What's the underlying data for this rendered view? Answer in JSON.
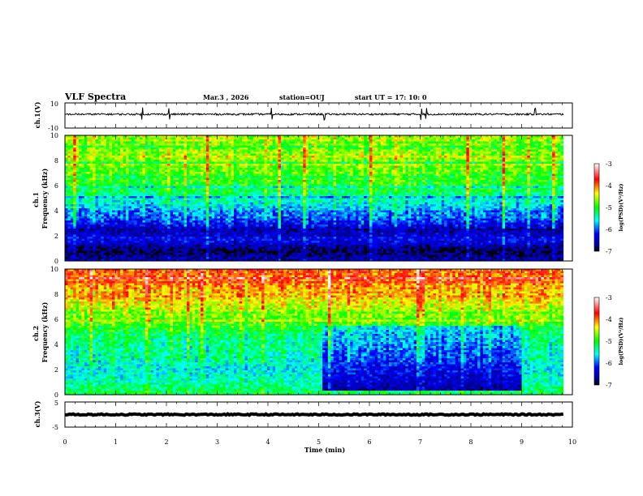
{
  "header": {
    "title": "VLF Spectra",
    "date": "Mar.3  , 2026",
    "station": "station=OUJ",
    "start_ut": "start  UT =   17: 10: 0"
  },
  "chart_data": [
    {
      "type": "line",
      "name": "ch1-waveform",
      "ylabel": "ch.1(V)",
      "ylim": [
        -10,
        10
      ],
      "y_ticks": [
        "10",
        "-10"
      ],
      "xlim": [
        0,
        10
      ],
      "data_extent_min": 9.82,
      "baseline": 1.0,
      "noise_amplitude": 0.7,
      "spikes_at_min": [
        1.52,
        2.05,
        4.07,
        5.12,
        7.02,
        7.12,
        9.27
      ]
    },
    {
      "type": "heatmap",
      "name": "ch1-spectrogram",
      "xlabel": "",
      "ylabel": "ch.1\nFrequency (kHz)",
      "ylim": [
        0,
        10
      ],
      "y_ticks": [
        "0",
        "2",
        "4",
        "6",
        "8",
        "10"
      ],
      "xlim": [
        0,
        10
      ],
      "data_extent_min": 9.82,
      "colorbar": {
        "label": "log(PSD)(V²/Hz)",
        "range": [
          -7,
          -3
        ],
        "ticks": [
          "-3",
          "-4",
          "-5",
          "-6",
          "-7"
        ]
      },
      "frequency_profile": [
        {
          "f_khz": 0.0,
          "log_psd": -6.5
        },
        {
          "f_khz": 0.8,
          "log_psd": -6.9
        },
        {
          "f_khz": 1.6,
          "log_psd": -6.3
        },
        {
          "f_khz": 2.5,
          "log_psd": -6.6
        },
        {
          "f_khz": 3.4,
          "log_psd": -6.0
        },
        {
          "f_khz": 4.5,
          "log_psd": -5.6
        },
        {
          "f_khz": 6.0,
          "log_psd": -5.0
        },
        {
          "f_khz": 8.0,
          "log_psd": -4.7
        },
        {
          "f_khz": 10.0,
          "log_psd": -4.6
        }
      ]
    },
    {
      "type": "heatmap",
      "name": "ch2-spectrogram",
      "ylabel": "ch.2\nFrequency (kHz)",
      "ylim": [
        0,
        10
      ],
      "y_ticks": [
        "0",
        "2",
        "4",
        "6",
        "8",
        "10"
      ],
      "xlim": [
        0,
        10
      ],
      "data_extent_min": 9.82,
      "colorbar": {
        "label": "log(PSD)(V²/Hz)",
        "range": [
          -7,
          -3
        ],
        "ticks": [
          "-3",
          "-4",
          "-5",
          "-6",
          "-7"
        ]
      },
      "frequency_profile": [
        {
          "f_khz": 0.0,
          "log_psd": -5.1
        },
        {
          "f_khz": 1.0,
          "log_psd": -5.4
        },
        {
          "f_khz": 2.0,
          "log_psd": -5.6
        },
        {
          "f_khz": 3.0,
          "log_psd": -5.4
        },
        {
          "f_khz": 4.5,
          "log_psd": -5.3
        },
        {
          "f_khz": 6.0,
          "log_psd": -4.8
        },
        {
          "f_khz": 8.0,
          "log_psd": -4.2
        },
        {
          "f_khz": 10.0,
          "log_psd": -3.9
        }
      ],
      "quiet_region": {
        "t_min": [
          5.1,
          9.0
        ],
        "f_khz": [
          0.3,
          5.5
        ],
        "log_psd": -6.6
      }
    },
    {
      "type": "line",
      "name": "ch3-waveform",
      "ylabel": "ch.3(V)",
      "xlabel": "Time  (min)",
      "ylim": [
        -5,
        5
      ],
      "y_ticks": [
        "5",
        "-5"
      ],
      "xlim": [
        0,
        10
      ],
      "x_ticks": [
        "0",
        "1",
        "2",
        "3",
        "4",
        "5",
        "6",
        "7",
        "8",
        "9",
        "10"
      ],
      "data_extent_min": 9.82,
      "baseline": 0.0,
      "noise_amplitude": 0.25
    }
  ]
}
